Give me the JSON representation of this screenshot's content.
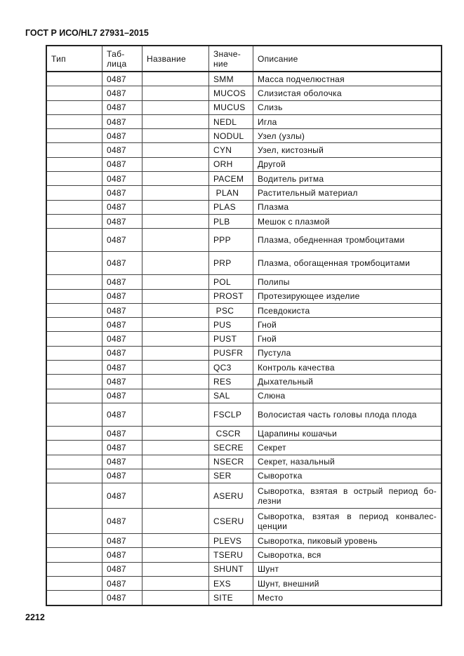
{
  "header": {
    "title": "ГОСТ Р ИСО/HL7 27931–2015"
  },
  "table": {
    "columns": [
      "Тип",
      "Таб-\nлица",
      "Название",
      "Значе-\nние",
      "Описание"
    ],
    "rows": [
      {
        "type": "",
        "table": "0487",
        "name": "",
        "value": "SMM",
        "description": "Масса подчелюстная",
        "size": "n"
      },
      {
        "type": "",
        "table": "0487",
        "name": "",
        "value": "MUCOS",
        "description": "Слизистая оболочка",
        "size": "n"
      },
      {
        "type": "",
        "table": "0487",
        "name": "",
        "value": "MUCUS",
        "description": "Слизь",
        "size": "n"
      },
      {
        "type": "",
        "table": "0487",
        "name": "",
        "value": "NEDL",
        "description": "Игла",
        "size": "n"
      },
      {
        "type": "",
        "table": "0487",
        "name": "",
        "value": "NODUL",
        "description": "Узел (узлы)",
        "size": "n"
      },
      {
        "type": "",
        "table": "0487",
        "name": "",
        "value": "CYN",
        "description": "Узел, кистозный",
        "size": "n"
      },
      {
        "type": "",
        "table": "0487",
        "name": "",
        "value": "ORH",
        "description": "Другой",
        "size": "n"
      },
      {
        "type": "",
        "table": "0487",
        "name": "",
        "value": "PACEM",
        "description": "Водитель ритма",
        "size": "n"
      },
      {
        "type": "",
        "table": "0487",
        "name": "",
        "value": " PLAN",
        "description": "Растительный материал",
        "size": "n"
      },
      {
        "type": "",
        "table": "0487",
        "name": "",
        "value": "PLAS",
        "description": "Плазма",
        "size": "n"
      },
      {
        "type": "",
        "table": "0487",
        "name": "",
        "value": "PLB",
        "description": "Мешок с плазмой",
        "size": "n"
      },
      {
        "type": "",
        "table": "0487",
        "name": "",
        "value": "PPP",
        "description": "Плазма, обедненная тромбоцитами",
        "size": "t"
      },
      {
        "type": "",
        "table": "0487",
        "name": "",
        "value": "PRP",
        "description": "Плазма, обогащенная тромбоцитами",
        "size": "t"
      },
      {
        "type": "",
        "table": "0487",
        "name": "",
        "value": "POL",
        "description": "Полипы",
        "size": "n"
      },
      {
        "type": "",
        "table": "0487",
        "name": "",
        "value": "PROST",
        "description": "Протезирующее изделие",
        "size": "n"
      },
      {
        "type": "",
        "table": "0487",
        "name": "",
        "value": " PSC",
        "description": "Псевдокиста",
        "size": "n"
      },
      {
        "type": "",
        "table": "0487",
        "name": "",
        "value": "PUS",
        "description": "Гной",
        "size": "n"
      },
      {
        "type": "",
        "table": "0487",
        "name": "",
        "value": "PUST",
        "description": "Гной",
        "size": "n"
      },
      {
        "type": "",
        "table": "0487",
        "name": "",
        "value": "PUSFR",
        "description": "Пустула",
        "size": "n"
      },
      {
        "type": "",
        "table": "0487",
        "name": "",
        "value": "QC3",
        "description": "Контроль качества",
        "size": "n"
      },
      {
        "type": "",
        "table": "0487",
        "name": "",
        "value": "RES",
        "description": "Дыхательный",
        "size": "n"
      },
      {
        "type": "",
        "table": "0487",
        "name": "",
        "value": "SAL",
        "description": "Слюна",
        "size": "n"
      },
      {
        "type": "",
        "table": "0487",
        "name": "",
        "value": "FSCLP",
        "description": "Волосистая часть головы плода плода",
        "size": "t"
      },
      {
        "type": "",
        "table": "0487",
        "name": "",
        "value": " CSCR",
        "description": "Царапины кошачьи",
        "size": "n"
      },
      {
        "type": "",
        "table": "0487",
        "name": "",
        "value": "SECRE",
        "description": "Секрет",
        "size": "n"
      },
      {
        "type": "",
        "table": "0487",
        "name": "",
        "value": "NSECR",
        "description": "Секрет, назальный",
        "size": "n"
      },
      {
        "type": "",
        "table": "0487",
        "name": "",
        "value": "SER",
        "description": "Сыворотка",
        "size": "n"
      },
      {
        "type": "",
        "table": "0487",
        "name": "",
        "value": "ASERU",
        "description": "Сыворотка, взятая в острый период бо-лезни",
        "size": "w"
      },
      {
        "type": "",
        "table": "0487",
        "name": "",
        "value": "CSERU",
        "description": "Сыворотка, взятая в период конвалес-ценции",
        "size": "w"
      },
      {
        "type": "",
        "table": "0487",
        "name": "",
        "value": "PLEVS",
        "description": "Сыворотка, пиковый уровень",
        "size": "n"
      },
      {
        "type": "",
        "table": "0487",
        "name": "",
        "value": "TSERU",
        "description": "Сыворотка, вся",
        "size": "n"
      },
      {
        "type": "",
        "table": "0487",
        "name": "",
        "value": "SHUNT",
        "description": "Шунт",
        "size": "n"
      },
      {
        "type": "",
        "table": "0487",
        "name": "",
        "value": "EXS",
        "description": "Шунт, внешний",
        "size": "n"
      },
      {
        "type": "",
        "table": "0487",
        "name": "",
        "value": "SITE",
        "description": "Место",
        "size": "n"
      }
    ]
  },
  "footer": {
    "page_number": "2212"
  }
}
